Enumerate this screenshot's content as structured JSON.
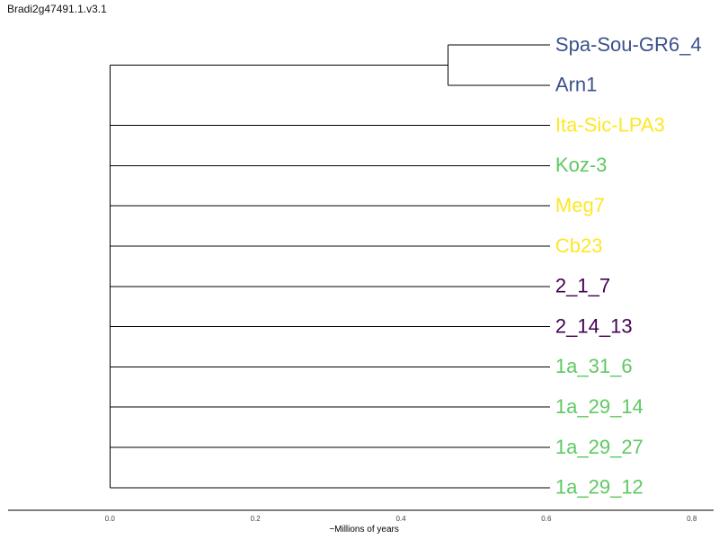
{
  "title": "Bradi2g47491.1.v3.1",
  "chart_data": {
    "type": "tree",
    "xlabel": "~Millions of years",
    "xticks": [
      0.0,
      0.2,
      0.4,
      0.6,
      0.8
    ],
    "xtick_labels": [
      "0.0",
      "0.2",
      "0.4",
      "0.6",
      "0.8"
    ],
    "xlim": [
      -0.14,
      0.83
    ],
    "root_x": 0.0,
    "inner_node": {
      "x": 0.465,
      "children": [
        "Spa-Sou-GR6_4",
        "Arn1"
      ]
    },
    "tip_x": 0.605,
    "colors": {
      "blue": "#3b528b",
      "yellow": "#fde725",
      "green": "#5ec962",
      "purple": "#440154"
    },
    "leaves": [
      {
        "name": "Spa-Sou-GR6_4",
        "color": "#3b528b"
      },
      {
        "name": "Arn1",
        "color": "#3b528b"
      },
      {
        "name": "Ita-Sic-LPA3",
        "color": "#fde725"
      },
      {
        "name": "Koz-3",
        "color": "#5ec962"
      },
      {
        "name": "Meg7",
        "color": "#fde725"
      },
      {
        "name": "Cb23",
        "color": "#fde725"
      },
      {
        "name": "2_1_7",
        "color": "#440154"
      },
      {
        "name": "2_14_13",
        "color": "#440154"
      },
      {
        "name": "1a_31_6",
        "color": "#5ec962"
      },
      {
        "name": "1a_29_14",
        "color": "#5ec962"
      },
      {
        "name": "1a_29_27",
        "color": "#5ec962"
      },
      {
        "name": "1a_29_12",
        "color": "#5ec962"
      }
    ]
  }
}
